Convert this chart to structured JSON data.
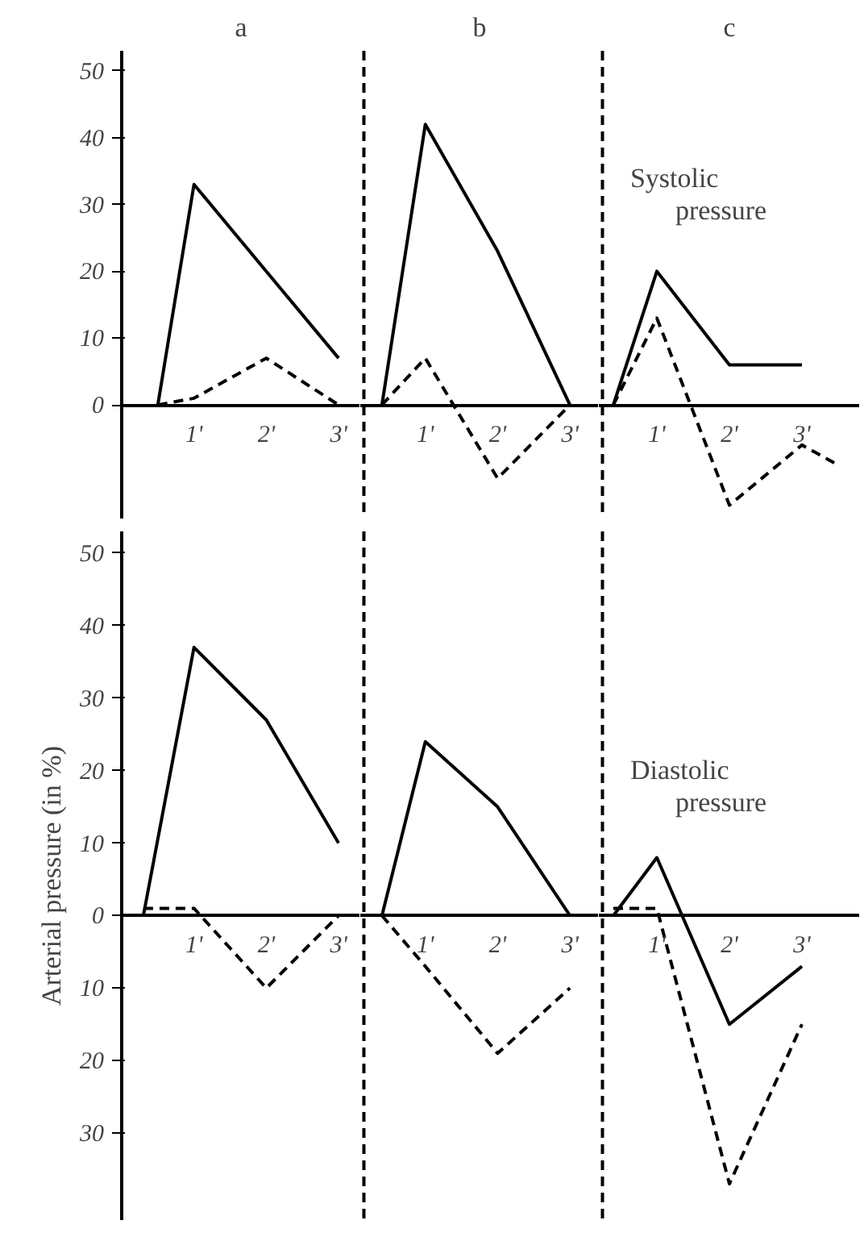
{
  "chart_data": [
    {
      "type": "line",
      "title": "a",
      "xlim": [
        0,
        3.3
      ],
      "ylim": [
        -17,
        53
      ],
      "xticks": [
        {
          "value": 1,
          "label": "1'"
        },
        {
          "value": 2,
          "label": "2'"
        },
        {
          "value": 3,
          "label": "3'"
        }
      ],
      "yticks": [
        0,
        10,
        20,
        30,
        40,
        50
      ],
      "grid": false,
      "series": [
        {
          "color": "#000000",
          "line_style": "solid",
          "x": [
            0.5,
            1,
            2,
            3
          ],
          "values": [
            0,
            33,
            20,
            7
          ]
        },
        {
          "color": "#000000",
          "line_style": "dashed",
          "x": [
            0.5,
            1,
            2,
            3
          ],
          "values": [
            0,
            1,
            7,
            0
          ]
        }
      ]
    },
    {
      "type": "line",
      "title": "b",
      "xlim": [
        0.1,
        3.4
      ],
      "ylim": [
        -17,
        53
      ],
      "xticks": [
        {
          "value": 1,
          "label": "1'"
        },
        {
          "value": 2,
          "label": "2'"
        },
        {
          "value": 3,
          "label": "3'"
        }
      ],
      "tick_labels": "x",
      "grid": false,
      "ref_lines": [
        {
          "axis": "x",
          "value": 0.15,
          "line_style": "dashed",
          "color": "#000000"
        }
      ],
      "series": [
        {
          "color": "#000000",
          "line_style": "solid",
          "x": [
            0.4,
            1,
            2,
            3
          ],
          "values": [
            0,
            42,
            23,
            0
          ]
        },
        {
          "color": "#000000",
          "line_style": "dashed",
          "x": [
            0.4,
            1,
            2,
            3
          ],
          "values": [
            0,
            7,
            -11,
            0
          ]
        }
      ]
    },
    {
      "type": "line",
      "title": "c",
      "annotations": [
        "Systolic pressure"
      ],
      "xlim": [
        0.2,
        3.8
      ],
      "ylim": [
        -17,
        53
      ],
      "xticks": [
        {
          "value": 1,
          "label": "1'"
        },
        {
          "value": 2,
          "label": "2'"
        },
        {
          "value": 3,
          "label": "3'"
        }
      ],
      "tick_labels": "x",
      "grid": false,
      "ref_lines": [
        {
          "axis": "x",
          "value": 0.25,
          "line_style": "dashed",
          "color": "#000000"
        }
      ],
      "series": [
        {
          "color": "#000000",
          "line_style": "solid",
          "x": [
            0.4,
            1,
            2,
            3
          ],
          "values": [
            0,
            20,
            6,
            6
          ]
        },
        {
          "color": "#000000",
          "line_style": "dashed",
          "x": [
            0.4,
            1,
            2,
            3,
            3.5
          ],
          "values": [
            0,
            13,
            -15,
            -6,
            -9
          ]
        }
      ]
    },
    {
      "type": "line",
      "ylabel": "Arterial pressure (in %)",
      "xlim": [
        0,
        3.3
      ],
      "ylim": [
        -42,
        53
      ],
      "xticks": [
        {
          "value": 1,
          "label": "1'"
        },
        {
          "value": 2,
          "label": "2'"
        },
        {
          "value": 3,
          "label": "3'"
        }
      ],
      "yticks": [
        {
          "value": -30,
          "label": "30"
        },
        {
          "value": -20,
          "label": "20"
        },
        {
          "value": -10,
          "label": "10"
        },
        0,
        10,
        20,
        30,
        40,
        50
      ],
      "grid": false,
      "series": [
        {
          "color": "#000000",
          "line_style": "solid",
          "x": [
            0.3,
            1,
            2,
            3
          ],
          "values": [
            0,
            37,
            27,
            10
          ]
        },
        {
          "color": "#000000",
          "line_style": "dashed",
          "x": [
            0.3,
            1,
            2,
            3
          ],
          "values": [
            1,
            1,
            -10,
            0
          ]
        }
      ]
    },
    {
      "type": "line",
      "xlim": [
        0.1,
        3.4
      ],
      "ylim": [
        -42,
        53
      ],
      "xticks": [
        {
          "value": 1,
          "label": "1'"
        },
        {
          "value": 2,
          "label": "2'"
        },
        {
          "value": 3,
          "label": "3'"
        }
      ],
      "tick_labels": "x",
      "grid": false,
      "ref_lines": [
        {
          "axis": "x",
          "value": 0.15,
          "line_style": "dashed",
          "color": "#000000"
        }
      ],
      "series": [
        {
          "color": "#000000",
          "line_style": "solid",
          "x": [
            0.4,
            1,
            2,
            3
          ],
          "values": [
            0,
            24,
            15,
            0
          ]
        },
        {
          "color": "#000000",
          "line_style": "dashed",
          "x": [
            0.4,
            1,
            2,
            3
          ],
          "values": [
            0,
            -7,
            -19,
            -10
          ]
        }
      ]
    },
    {
      "type": "line",
      "annotations": [
        "Diastolic pressure"
      ],
      "xlim": [
        0.2,
        3.8
      ],
      "ylim": [
        -42,
        53
      ],
      "xticks": [
        {
          "value": 1,
          "label": "1'"
        },
        {
          "value": 2,
          "label": "2'"
        },
        {
          "value": 3,
          "label": "3'"
        }
      ],
      "tick_labels": "x",
      "grid": false,
      "ref_lines": [
        {
          "axis": "x",
          "value": 0.25,
          "line_style": "dashed",
          "color": "#000000"
        }
      ],
      "series": [
        {
          "color": "#000000",
          "line_style": "solid",
          "x": [
            0.4,
            1,
            2,
            3
          ],
          "values": [
            0,
            8,
            -15,
            -7
          ]
        },
        {
          "color": "#000000",
          "line_style": "dashed",
          "x": [
            0.4,
            1,
            2,
            3
          ],
          "values": [
            1,
            1,
            -37,
            -15
          ]
        }
      ]
    }
  ]
}
